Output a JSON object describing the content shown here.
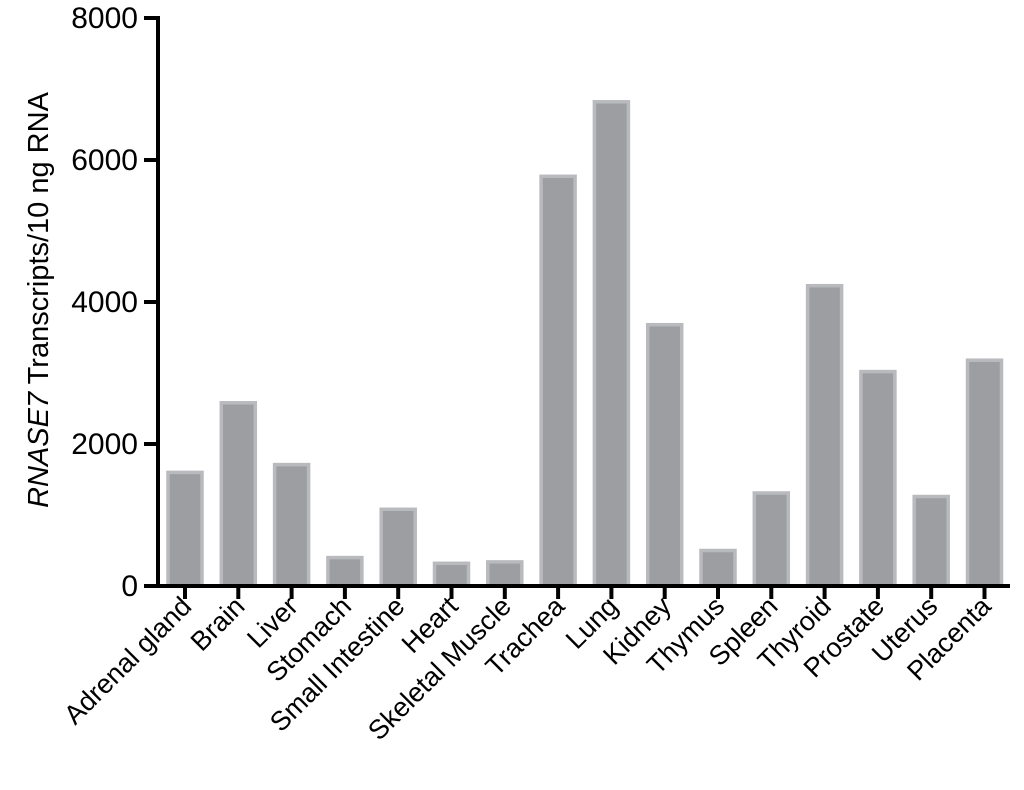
{
  "chart_data": {
    "type": "bar",
    "categories": [
      "Adrenal gland",
      "Brain",
      "Liver",
      "Stomach",
      "Small Intestine",
      "Heart",
      "Skeletal Muscle",
      "Trachea",
      "Lung",
      "Kidney",
      "Thymus",
      "Spleen",
      "Thyroid",
      "Prostate",
      "Uterus",
      "Placenta"
    ],
    "values": [
      1600,
      2580,
      1710,
      400,
      1080,
      320,
      340,
      5770,
      6820,
      3680,
      500,
      1310,
      4230,
      3020,
      1260,
      3180
    ],
    "ylabel_italic": "RNASE7",
    "ylabel_rest": " Transcripts/10 ng RNA",
    "xlabel": "",
    "ylim": [
      0,
      8000
    ],
    "yticks": [
      0,
      2000,
      4000,
      6000,
      8000
    ],
    "colors": {
      "bar_fill": "#9d9ea2",
      "bar_stroke": "#b9babd",
      "axis": "#000000"
    }
  }
}
